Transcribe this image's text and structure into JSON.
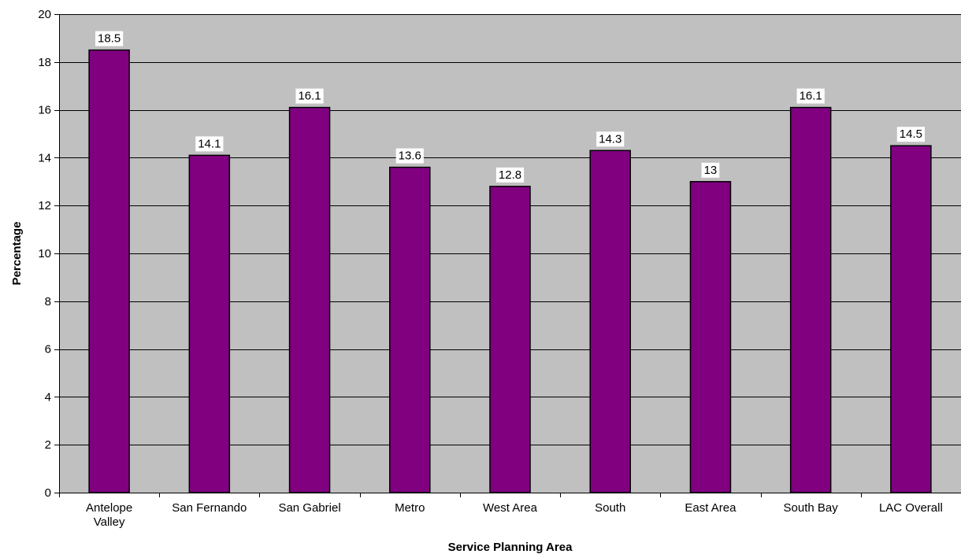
{
  "chart_data": {
    "type": "bar",
    "categories": [
      [
        "Antelope",
        "Valley"
      ],
      [
        "San Fernando"
      ],
      [
        "San Gabriel"
      ],
      [
        "Metro"
      ],
      [
        "West Area"
      ],
      [
        "South"
      ],
      [
        "East Area"
      ],
      [
        "South Bay"
      ],
      [
        "LAC Overall"
      ]
    ],
    "values": [
      18.5,
      14.1,
      16.1,
      13.6,
      12.8,
      14.3,
      13,
      16.1,
      14.5
    ],
    "data_labels": [
      "18.5",
      "14.1",
      "16.1",
      "13.6",
      "12.8",
      "14.3",
      "13",
      "16.1",
      "14.5"
    ],
    "title": "",
    "xlabel": "Service Planning Area",
    "ylabel": "Percentage",
    "ylim": [
      0,
      20
    ],
    "yticks": [
      0,
      2,
      4,
      6,
      8,
      10,
      12,
      14,
      16,
      18,
      20
    ],
    "grid": true,
    "legend": "none",
    "colors": {
      "bar_fill": "#800080",
      "bar_stroke": "#000000",
      "plot_background": "#c0c0c0",
      "gridline": "#000000",
      "label_background": "#ffffff"
    }
  }
}
